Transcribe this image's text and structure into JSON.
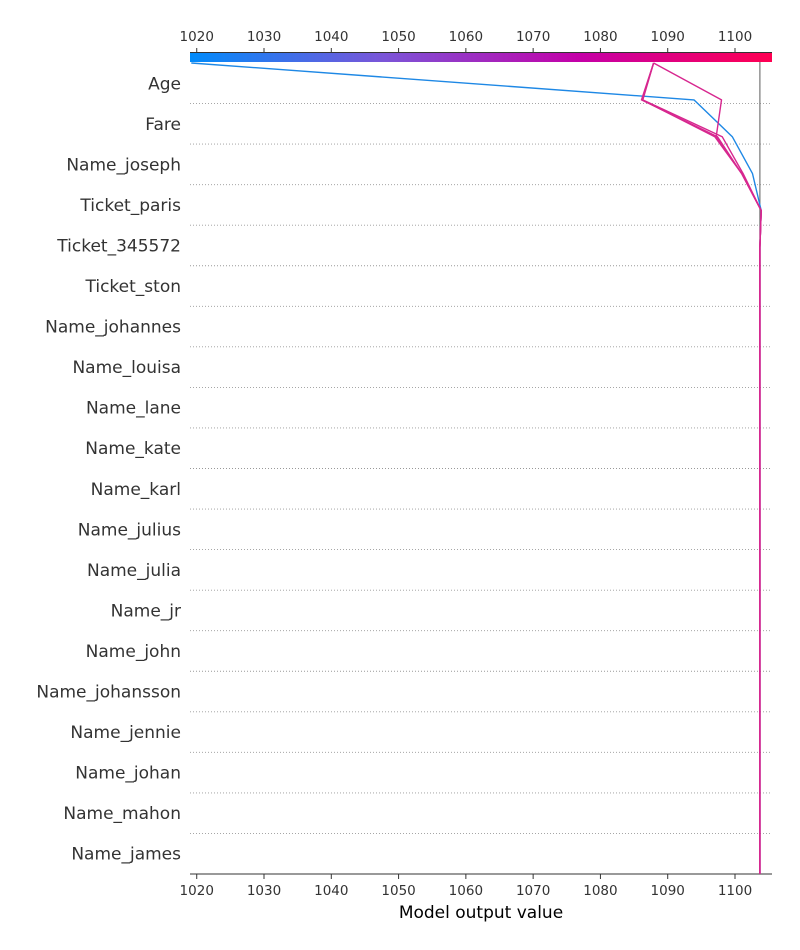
{
  "chart_data": {
    "type": "line",
    "subtype": "shap-decision-plot",
    "xlabel": "Model output value",
    "xlim": [
      1019,
      1105.5
    ],
    "x_ticks": [
      1020,
      1030,
      1040,
      1050,
      1060,
      1070,
      1080,
      1090,
      1100
    ],
    "base_value": 1103.7,
    "features": [
      "Age",
      "Fare",
      "Name_joseph",
      "Ticket_paris",
      "Ticket_345572",
      "Ticket_ston",
      "Name_johannes",
      "Name_louisa",
      "Name_lane",
      "Name_kate",
      "Name_karl",
      "Name_julius",
      "Name_julia",
      "Name_jr",
      "Name_john",
      "Name_johansson",
      "Name_jennie",
      "Name_johan",
      "Name_mahon",
      "Name_james"
    ],
    "colormap": [
      "#008bfb",
      "#7b55d8",
      "#c400a8",
      "#ff0052"
    ],
    "series": [
      {
        "color": "#1e88e5",
        "values": [
          1103.7,
          1103.7,
          1103.7,
          1103.7,
          1103.7,
          1103.7,
          1103.7,
          1103.7,
          1103.7,
          1103.7,
          1103.7,
          1103.7,
          1103.7,
          1103.7,
          1103.7,
          1103.7,
          1103.7,
          1103.7,
          1103.9,
          1102.6,
          1099.6,
          1093.9,
          1019.2
        ]
      },
      {
        "color": "#d7278f",
        "values": [
          1103.7,
          1103.7,
          1103.7,
          1103.7,
          1103.7,
          1103.7,
          1103.7,
          1103.7,
          1103.7,
          1103.7,
          1103.7,
          1103.7,
          1103.7,
          1103.7,
          1103.7,
          1103.7,
          1103.7,
          1103.7,
          1103.9,
          1101.2,
          1098.1,
          1086.3,
          1087.9
        ]
      },
      {
        "color": "#d7278f",
        "values": [
          1103.7,
          1103.7,
          1103.7,
          1103.7,
          1103.7,
          1103.7,
          1103.7,
          1103.7,
          1103.7,
          1103.7,
          1103.7,
          1103.7,
          1103.7,
          1103.7,
          1103.7,
          1103.7,
          1103.7,
          1103.7,
          1103.9,
          1101.0,
          1097.4,
          1086.1,
          1087.9
        ]
      },
      {
        "color": "#d7278f",
        "values": [
          1103.7,
          1103.7,
          1103.7,
          1103.7,
          1103.7,
          1103.7,
          1103.7,
          1103.7,
          1103.7,
          1103.7,
          1103.7,
          1103.7,
          1103.7,
          1103.7,
          1103.7,
          1103.7,
          1103.7,
          1103.7,
          1103.9,
          1101.0,
          1097.2,
          1098.0,
          1087.9
        ]
      },
      {
        "color": "#d7278f",
        "values": [
          1103.7,
          1103.7,
          1103.7,
          1103.7,
          1103.7,
          1103.7,
          1103.7,
          1103.7,
          1103.7,
          1103.7,
          1103.7,
          1103.7,
          1103.7,
          1103.7,
          1103.7,
          1103.7,
          1103.7,
          1103.7,
          1103.9,
          1101.0,
          1097.0,
          1086.2,
          1087.9
        ]
      }
    ]
  }
}
